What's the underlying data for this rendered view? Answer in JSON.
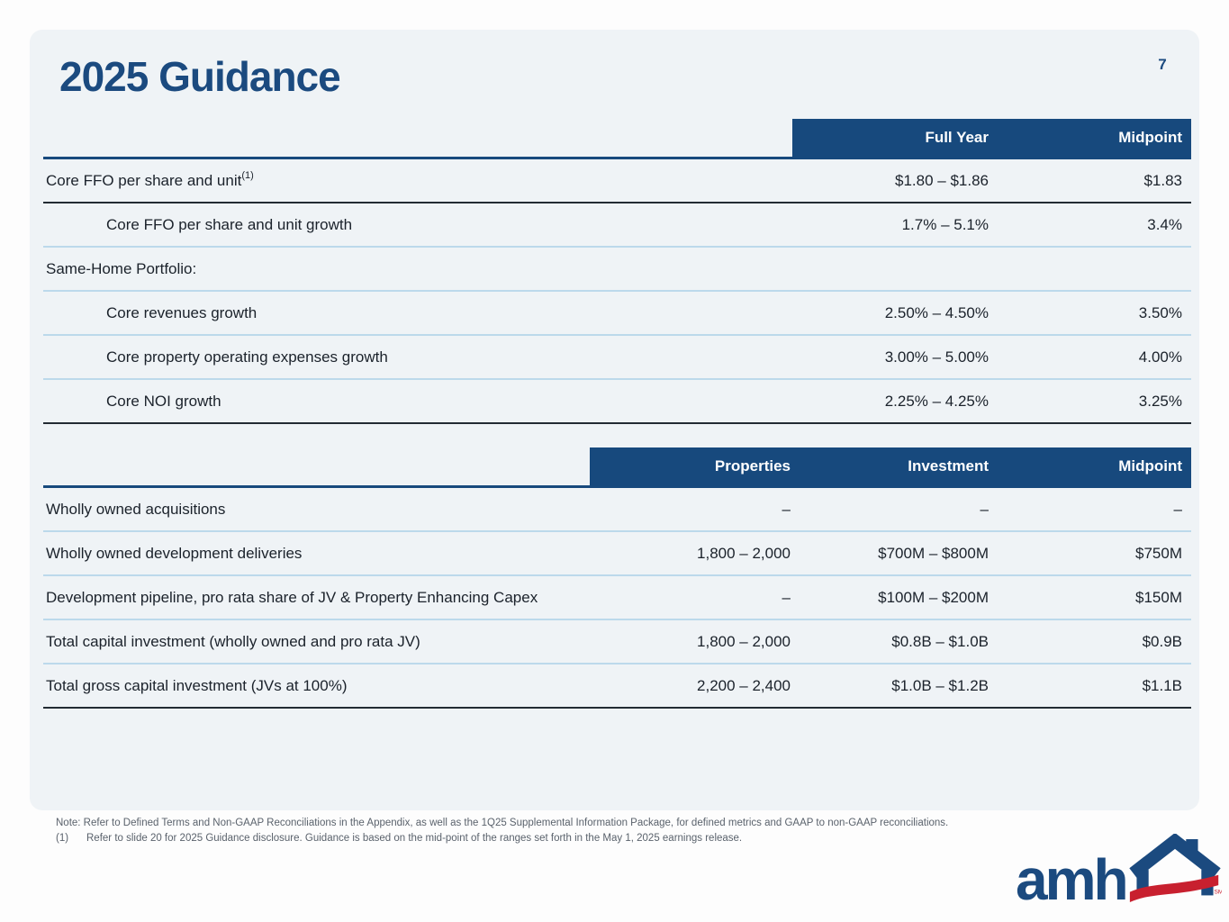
{
  "page": {
    "number": "7"
  },
  "title": "2025 Guidance",
  "colors": {
    "header_bg": "#17497D",
    "navy": "#1B4A7F",
    "card_bg": "#EFF3F6",
    "divider_light": "#BCD9EB",
    "divider_dark": "#232B33",
    "note_gray": "#5A626C",
    "logo_red": "#C8202F"
  },
  "table1": {
    "headers": [
      "Full Year",
      "Midpoint"
    ],
    "rows": [
      {
        "label": "Core FFO per share and unit",
        "sup": "(1)",
        "indent": false,
        "values": [
          "$1.80 – $1.86",
          "$1.83"
        ],
        "divider": "dark"
      },
      {
        "label": "Core FFO per share and unit growth",
        "indent": true,
        "values": [
          "1.7% – 5.1%",
          "3.4%"
        ],
        "divider": "light"
      },
      {
        "label": "Same-Home Portfolio:",
        "indent": false,
        "values": [
          "",
          ""
        ],
        "divider": "light"
      },
      {
        "label": "Core revenues growth",
        "indent": true,
        "values": [
          "2.50% – 4.50%",
          "3.50%"
        ],
        "divider": "light"
      },
      {
        "label": "Core property operating expenses growth",
        "indent": true,
        "values": [
          "3.00% – 5.00%",
          "4.00%"
        ],
        "divider": "light"
      },
      {
        "label": "Core NOI growth",
        "indent": true,
        "values": [
          "2.25% – 4.25%",
          "3.25%"
        ],
        "divider": "dark"
      }
    ]
  },
  "table2": {
    "headers": [
      "Properties",
      "Investment",
      "Midpoint"
    ],
    "rows": [
      {
        "label": "Wholly owned acquisitions",
        "indent": false,
        "values": [
          "–",
          "–",
          "–"
        ],
        "divider": "light"
      },
      {
        "label": "Wholly owned development deliveries",
        "indent": false,
        "values": [
          "1,800 – 2,000",
          "$700M – $800M",
          "$750M"
        ],
        "divider": "light"
      },
      {
        "label": "Development pipeline, pro rata share of JV & Property Enhancing Capex",
        "indent": false,
        "values": [
          "–",
          "$100M – $200M",
          "$150M"
        ],
        "divider": "light"
      },
      {
        "label": "Total capital investment (wholly owned and pro rata JV)",
        "indent": false,
        "values": [
          "1,800 – 2,000",
          "$0.8B – $1.0B",
          "$0.9B"
        ],
        "divider": "light"
      },
      {
        "label": "Total gross capital investment (JVs at 100%)",
        "indent": false,
        "values": [
          "2,200 – 2,400",
          "$1.0B – $1.2B",
          "$1.1B"
        ],
        "divider": "dark"
      }
    ]
  },
  "notes": {
    "line1": "Note: Refer to Defined Terms and Non-GAAP Reconciliations in the Appendix, as well as the 1Q25 Supplemental Information Package, for defined metrics and GAAP to non-GAAP reconciliations.",
    "line2_marker": "(1)",
    "line2_text": "Refer to slide 20 for 2025 Guidance disclosure. Guidance is based on the mid-point of the ranges set forth in the May 1, 2025 earnings release."
  },
  "logo": {
    "text": "amh",
    "sm": "SM"
  }
}
